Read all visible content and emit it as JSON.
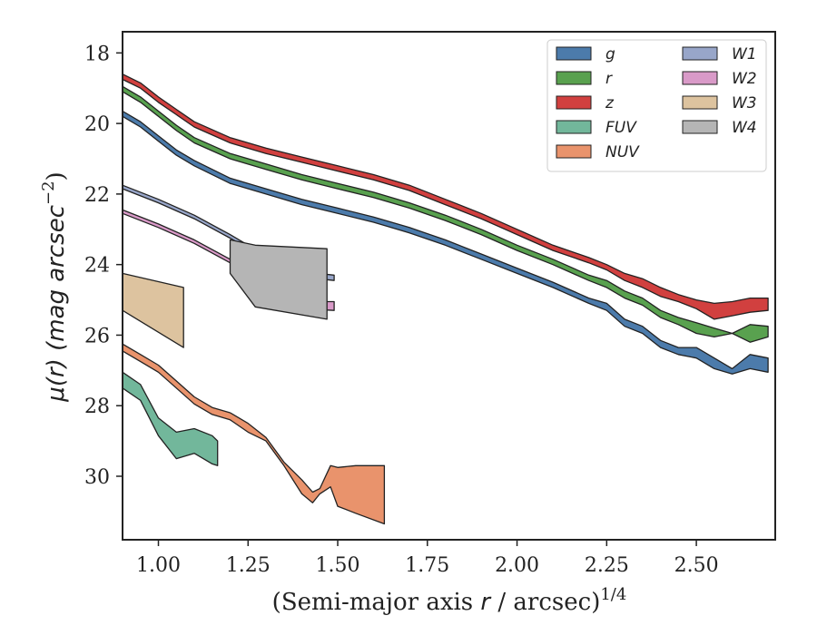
{
  "chart_data": {
    "type": "area",
    "xlabel_parts": {
      "pre": "(Semi-major axis ",
      "var": "r",
      "post": " / arcsec)",
      "sup": "1/4"
    },
    "ylabel_parts": {
      "mu": "μ(",
      "var": "r",
      "mid": ") (mag arcsec",
      "sup": "−2",
      "end": ")"
    },
    "xlim": [
      0.9,
      2.72
    ],
    "ylim": [
      31.8,
      17.4
    ],
    "y_inverted": true,
    "xticks": [
      1.0,
      1.25,
      1.5,
      1.75,
      2.0,
      2.25,
      2.5
    ],
    "xtick_labels": [
      "1.00",
      "1.25",
      "1.50",
      "1.75",
      "2.00",
      "2.25",
      "2.50"
    ],
    "yticks": [
      18,
      20,
      22,
      24,
      26,
      28,
      30
    ],
    "ytick_labels": [
      "18",
      "20",
      "22",
      "24",
      "26",
      "28",
      "30"
    ],
    "grid": false,
    "legend_position": "top-right",
    "series": [
      {
        "name": "g",
        "color": "#4c7bab",
        "x": [
          0.9,
          0.95,
          1.0,
          1.05,
          1.1,
          1.2,
          1.3,
          1.4,
          1.5,
          1.6,
          1.7,
          1.8,
          1.9,
          2.0,
          2.1,
          2.2,
          2.25,
          2.3,
          2.35,
          2.4,
          2.45,
          2.5,
          2.55,
          2.6,
          2.65,
          2.7
        ],
        "lower": [
          19.65,
          19.95,
          20.35,
          20.75,
          21.05,
          21.55,
          21.85,
          22.15,
          22.4,
          22.65,
          22.95,
          23.3,
          23.7,
          24.1,
          24.5,
          24.95,
          25.1,
          25.55,
          25.75,
          26.15,
          26.35,
          26.35,
          26.65,
          26.95,
          26.55,
          26.65
        ],
        "upper": [
          19.8,
          20.1,
          20.5,
          20.9,
          21.2,
          21.7,
          22.0,
          22.3,
          22.55,
          22.8,
          23.1,
          23.45,
          23.85,
          24.25,
          24.65,
          25.1,
          25.3,
          25.75,
          25.95,
          26.35,
          26.55,
          26.65,
          26.95,
          27.1,
          26.95,
          27.05
        ]
      },
      {
        "name": "r",
        "color": "#59a14f",
        "x": [
          0.9,
          0.95,
          1.0,
          1.05,
          1.1,
          1.2,
          1.3,
          1.4,
          1.5,
          1.6,
          1.7,
          1.8,
          1.9,
          2.0,
          2.1,
          2.2,
          2.25,
          2.3,
          2.35,
          2.4,
          2.45,
          2.5,
          2.55,
          2.6,
          2.65,
          2.7
        ],
        "lower": [
          18.95,
          19.25,
          19.65,
          20.05,
          20.4,
          20.85,
          21.15,
          21.45,
          21.7,
          21.95,
          22.25,
          22.6,
          23.0,
          23.45,
          23.85,
          24.3,
          24.45,
          24.75,
          24.95,
          25.3,
          25.5,
          25.65,
          25.8,
          25.95,
          25.7,
          25.75
        ],
        "upper": [
          19.1,
          19.4,
          19.8,
          20.2,
          20.55,
          21.0,
          21.3,
          21.6,
          21.85,
          22.1,
          22.4,
          22.75,
          23.15,
          23.6,
          24.0,
          24.45,
          24.65,
          24.95,
          25.15,
          25.5,
          25.7,
          25.95,
          26.05,
          25.95,
          26.2,
          26.05
        ]
      },
      {
        "name": "z",
        "color": "#d1403f",
        "x": [
          0.9,
          0.95,
          1.0,
          1.05,
          1.1,
          1.2,
          1.3,
          1.4,
          1.5,
          1.6,
          1.7,
          1.8,
          1.9,
          2.0,
          2.1,
          2.2,
          2.25,
          2.3,
          2.35,
          2.4,
          2.45,
          2.5,
          2.55,
          2.6,
          2.65,
          2.7
        ],
        "lower": [
          18.6,
          18.85,
          19.25,
          19.6,
          19.95,
          20.4,
          20.7,
          20.95,
          21.2,
          21.45,
          21.75,
          22.15,
          22.55,
          23.0,
          23.45,
          23.8,
          24.0,
          24.25,
          24.4,
          24.65,
          24.85,
          25.0,
          25.1,
          25.05,
          24.95,
          24.95
        ],
        "upper": [
          18.75,
          19.0,
          19.4,
          19.75,
          20.1,
          20.55,
          20.85,
          21.1,
          21.35,
          21.6,
          21.9,
          22.3,
          22.7,
          23.15,
          23.6,
          23.95,
          24.15,
          24.45,
          24.65,
          24.9,
          25.05,
          25.25,
          25.55,
          25.45,
          25.35,
          25.3
        ]
      },
      {
        "name": "FUV",
        "color": "#72b79b",
        "x": [
          0.9,
          0.95,
          1.0,
          1.05,
          1.1,
          1.15,
          1.165
        ],
        "lower": [
          27.05,
          27.4,
          28.35,
          28.75,
          28.65,
          28.85,
          29.0
        ],
        "upper": [
          27.5,
          27.85,
          28.85,
          29.5,
          29.35,
          29.65,
          29.7
        ]
      },
      {
        "name": "NUV",
        "color": "#e9936c",
        "x": [
          0.9,
          0.95,
          1.0,
          1.05,
          1.1,
          1.15,
          1.2,
          1.25,
          1.3,
          1.35,
          1.4,
          1.43,
          1.45,
          1.48,
          1.5,
          1.55,
          1.63
        ],
        "lower": [
          26.25,
          26.55,
          26.85,
          27.3,
          27.75,
          28.05,
          28.2,
          28.5,
          28.9,
          29.6,
          30.1,
          30.45,
          30.35,
          29.7,
          29.75,
          29.7,
          29.7
        ],
        "upper": [
          26.45,
          26.75,
          27.05,
          27.5,
          27.95,
          28.25,
          28.4,
          28.75,
          29.0,
          29.7,
          30.5,
          30.75,
          30.5,
          30.3,
          30.85,
          31.05,
          31.35
        ]
      },
      {
        "name": "W1",
        "color": "#98a6c9",
        "x": [
          0.9,
          1.0,
          1.1,
          1.2,
          1.3,
          1.4,
          1.49
        ],
        "lower": [
          21.75,
          22.15,
          22.6,
          23.15,
          23.75,
          24.2,
          24.3
        ],
        "upper": [
          21.85,
          22.25,
          22.7,
          23.25,
          23.85,
          24.35,
          24.45
        ]
      },
      {
        "name": "W2",
        "color": "#d99ac8",
        "x": [
          0.9,
          1.0,
          1.1,
          1.2,
          1.3,
          1.4,
          1.49
        ],
        "lower": [
          22.45,
          22.85,
          23.3,
          23.85,
          24.55,
          25.05,
          25.05
        ],
        "upper": [
          22.55,
          22.95,
          23.4,
          23.95,
          24.65,
          25.25,
          25.3
        ]
      },
      {
        "name": "W3",
        "color": "#ddc39f",
        "x": [
          0.9,
          1.07
        ],
        "lower": [
          24.25,
          24.65
        ],
        "upper": [
          25.3,
          26.35
        ]
      },
      {
        "name": "W4",
        "color": "#b5b5b5",
        "x": [
          1.2,
          1.27,
          1.47
        ],
        "lower": [
          23.3,
          23.45,
          23.55
        ],
        "upper": [
          24.25,
          25.2,
          25.55
        ]
      }
    ]
  }
}
